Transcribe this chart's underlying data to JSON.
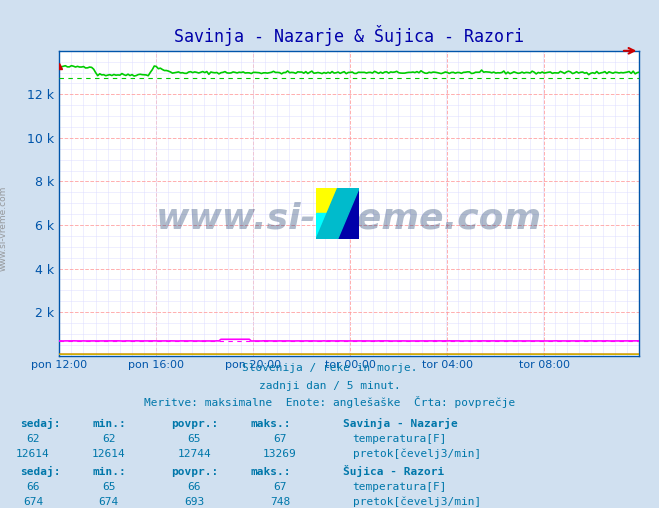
{
  "title": "Savinja - Nazarje & Šujica - Razori",
  "bg_color": "#d0e0f0",
  "plot_bg_color": "#ffffff",
  "grid_major_color": "#ff9999",
  "grid_minor_color": "#ddddff",
  "title_color": "#0000aa",
  "axis_color": "#0055aa",
  "tick_label_color": "#0055aa",
  "watermark_text": "www.si-vreme.com",
  "watermark_color": "#1a3a6a",
  "subtitle1": "Slovenija / reke in morje.",
  "subtitle2": "zadnji dan / 5 minut.",
  "subtitle3": "Meritve: maksimalne  Enote: anglešaške  Črta: povprečje",
  "subtitle_color": "#0077aa",
  "n_points": 288,
  "x_tick_labels": [
    "pon 12:00",
    "pon 16:00",
    "pon 20:00",
    "tor 00:00",
    "tor 04:00",
    "tor 08:00"
  ],
  "x_tick_positions": [
    0,
    48,
    96,
    144,
    192,
    240
  ],
  "ylim": [
    0,
    14000
  ],
  "yticks": [
    0,
    2000,
    4000,
    6000,
    8000,
    10000,
    12000,
    14000
  ],
  "ytick_labels": [
    "",
    "2 k",
    "4 k",
    "6 k",
    "8 k",
    "10 k",
    "12 k",
    ""
  ],
  "savinja_flow_value": 13000,
  "savinja_flow_spike1_start": 0,
  "savinja_flow_spike1_end": 16,
  "savinja_flow_spike1_height": 13269,
  "savinja_flow_dip_start": 16,
  "savinja_flow_dip_end": 20,
  "savinja_flow_low_start": 20,
  "savinja_flow_low_end": 44,
  "savinja_flow_low_value": 12900,
  "savinja_flow_spike2_start": 44,
  "savinja_flow_spike2_end": 48,
  "savinja_flow_spike2_height": 13269,
  "savinja_flow_dip2_start": 48,
  "savinja_flow_dip2_end": 56,
  "savinja_flow_main_value": 13000,
  "savinja_temp_value": 62,
  "sujica_flow_value": 674,
  "sujica_temp_value": 66,
  "avg_line_dash": [
    4,
    4
  ],
  "savinja_flow_color": "#00cc00",
  "savinja_temp_color": "#dd0000",
  "sujica_flow_color": "#ff00ff",
  "sujica_temp_color": "#cccc00",
  "arrow_color": "#cc0000",
  "legend_items": [
    {
      "label": "Savinja - Nazarje",
      "header": true
    },
    {
      "label": "temperatura[F]",
      "color": "#dd0000",
      "value_sedaj": 62,
      "value_min": 62,
      "value_povpr": 65,
      "value_maks": 67
    },
    {
      "label": "pretok[čevelj3/min]",
      "color": "#00cc00",
      "value_sedaj": 12614,
      "value_min": 12614,
      "value_povpr": 12744,
      "value_maks": 13269
    },
    {
      "label": "Šujica - Razori",
      "header": true
    },
    {
      "label": "temperatura[F]",
      "color": "#cccc00",
      "value_sedaj": 66,
      "value_min": 65,
      "value_povpr": 66,
      "value_maks": 67
    },
    {
      "label": "pretok[čevelj3/min]",
      "color": "#ff00ff",
      "value_sedaj": 674,
      "value_min": 674,
      "value_povpr": 693,
      "value_maks": 748
    }
  ]
}
